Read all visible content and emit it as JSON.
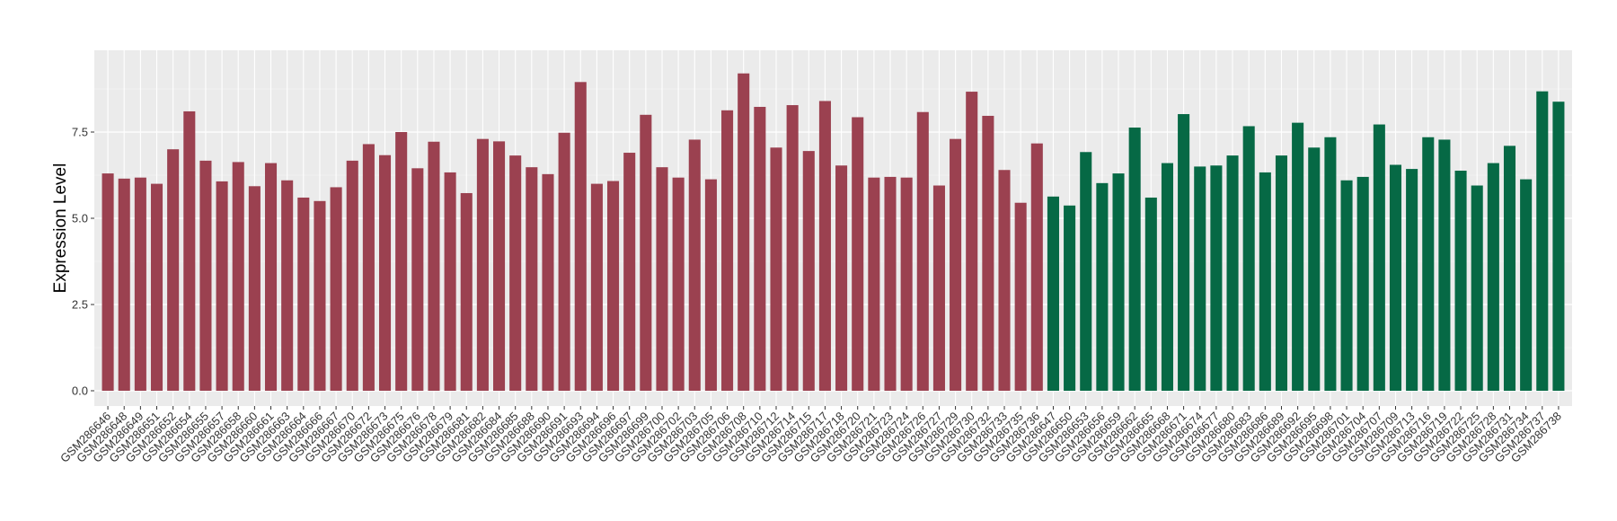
{
  "chart_data": {
    "type": "bar",
    "ylabel": "Expression Level",
    "xlabel": "",
    "ylim": [
      0,
      9.7
    ],
    "yticks": [
      0.0,
      2.5,
      5.0,
      7.5
    ],
    "ytick_labels": [
      "0.0",
      "2.5",
      "5.0",
      "7.5"
    ],
    "grid": true,
    "legend": "none",
    "colors": {
      "group1": "#9b4150",
      "group2": "#066945",
      "panel": "#ebebeb",
      "grid": "#ffffff"
    },
    "categories": [
      "GSM286646",
      "GSM286648",
      "GSM286649",
      "GSM286651",
      "GSM286652",
      "GSM286654",
      "GSM286655",
      "GSM286657",
      "GSM286658",
      "GSM286660",
      "GSM286661",
      "GSM286663",
      "GSM286664",
      "GSM286666",
      "GSM286667",
      "GSM286670",
      "GSM286672",
      "GSM286673",
      "GSM286675",
      "GSM286676",
      "GSM286678",
      "GSM286679",
      "GSM286681",
      "GSM286682",
      "GSM286684",
      "GSM286685",
      "GSM286688",
      "GSM286690",
      "GSM286691",
      "GSM286693",
      "GSM286694",
      "GSM286696",
      "GSM286697",
      "GSM286699",
      "GSM286700",
      "GSM286702",
      "GSM286703",
      "GSM286705",
      "GSM286706",
      "GSM286708",
      "GSM286710",
      "GSM286712",
      "GSM286714",
      "GSM286715",
      "GSM286717",
      "GSM286718",
      "GSM286720",
      "GSM286721",
      "GSM286723",
      "GSM286724",
      "GSM286726",
      "GSM286727",
      "GSM286729",
      "GSM286730",
      "GSM286732",
      "GSM286733",
      "GSM286735",
      "GSM286736",
      "GSM286647",
      "GSM286650",
      "GSM286653",
      "GSM286656",
      "GSM286659",
      "GSM286662",
      "GSM286665",
      "GSM286668",
      "GSM286671",
      "GSM286674",
      "GSM286677",
      "GSM286680",
      "GSM286683",
      "GSM286686",
      "GSM286689",
      "GSM286692",
      "GSM286695",
      "GSM286698",
      "GSM286701",
      "GSM286704",
      "GSM286707",
      "GSM286709",
      "GSM286713",
      "GSM286716",
      "GSM286719",
      "GSM286722",
      "GSM286725",
      "GSM286728",
      "GSM286731",
      "GSM286734",
      "GSM286737",
      "GSM286738"
    ],
    "values": [
      6.3,
      6.15,
      6.18,
      6.0,
      7.0,
      8.1,
      6.67,
      6.07,
      6.63,
      5.93,
      6.6,
      6.1,
      5.6,
      5.5,
      5.9,
      6.67,
      7.15,
      6.83,
      7.5,
      6.45,
      7.22,
      6.33,
      5.73,
      7.3,
      7.23,
      6.82,
      6.48,
      6.28,
      7.48,
      8.95,
      6.0,
      6.08,
      6.9,
      8.0,
      6.48,
      6.18,
      7.28,
      6.13,
      8.13,
      9.2,
      8.23,
      7.05,
      8.28,
      6.95,
      8.4,
      6.53,
      7.93,
      6.18,
      6.2,
      6.18,
      8.08,
      5.95,
      7.3,
      8.67,
      7.97,
      6.4,
      5.45,
      7.17,
      5.63,
      5.37,
      6.92,
      6.02,
      6.3,
      7.63,
      5.6,
      6.6,
      8.02,
      6.5,
      6.53,
      6.82,
      7.67,
      6.33,
      6.82,
      7.77,
      7.05,
      7.35,
      6.1,
      6.2,
      7.72,
      6.55,
      6.43,
      7.35,
      7.28,
      6.38,
      5.95,
      6.6,
      7.1,
      6.13,
      8.68,
      8.38
    ],
    "groups": [
      1,
      1,
      1,
      1,
      1,
      1,
      1,
      1,
      1,
      1,
      1,
      1,
      1,
      1,
      1,
      1,
      1,
      1,
      1,
      1,
      1,
      1,
      1,
      1,
      1,
      1,
      1,
      1,
      1,
      1,
      1,
      1,
      1,
      1,
      1,
      1,
      1,
      1,
      1,
      1,
      1,
      1,
      1,
      1,
      1,
      1,
      1,
      1,
      1,
      1,
      1,
      1,
      1,
      1,
      1,
      1,
      1,
      1,
      2,
      2,
      2,
      2,
      2,
      2,
      2,
      2,
      2,
      2,
      2,
      2,
      2,
      2,
      2,
      2,
      2,
      2,
      2,
      2,
      2,
      2,
      2,
      2,
      2,
      2,
      2,
      2,
      2,
      2,
      2,
      2
    ]
  }
}
